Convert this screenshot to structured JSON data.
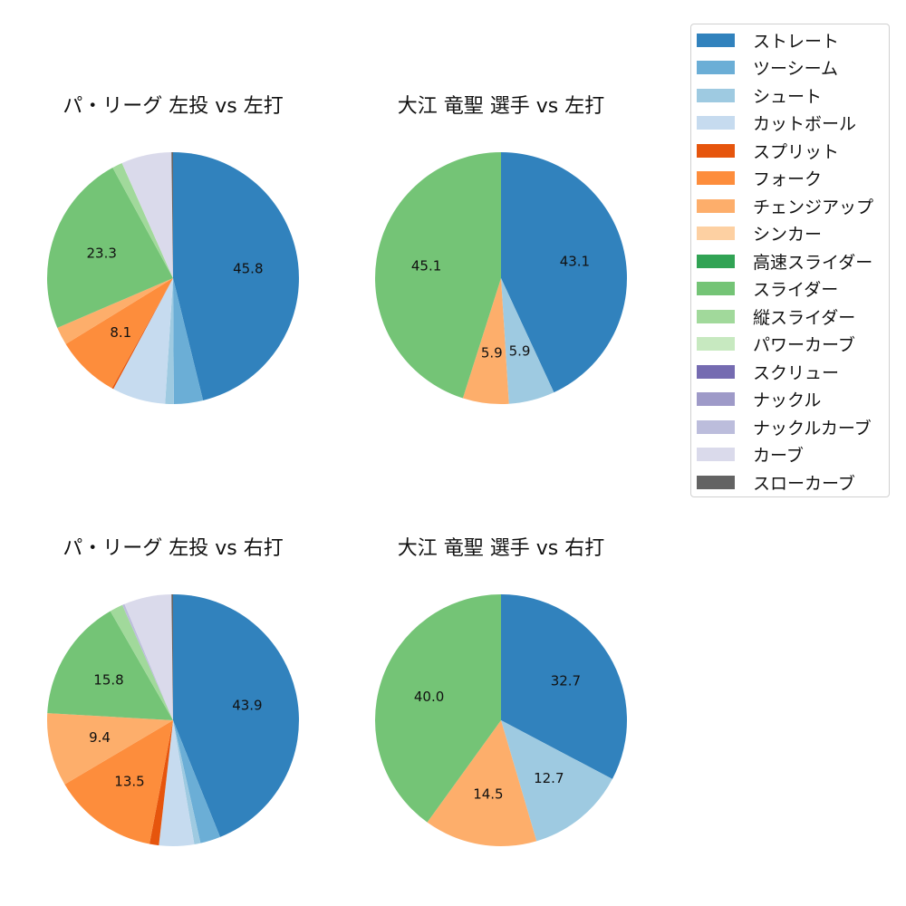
{
  "colors": {
    "ストレート": "#3182bd",
    "ツーシーム": "#6baed6",
    "シュート": "#9ecae1",
    "カットボール": "#c6dbef",
    "スプリット": "#e6550d",
    "フォーク": "#fd8d3c",
    "チェンジアップ": "#fdae6b",
    "シンカー": "#fdd0a2",
    "高速スライダー": "#31a354",
    "スライダー": "#74c476",
    "縦スライダー": "#a1d99b",
    "パワーカーブ": "#c7e9c0",
    "スクリュー": "#756bb1",
    "ナックル": "#9e9ac8",
    "ナックルカーブ": "#bcbddc",
    "カーブ": "#dadaeb",
    "スローカーブ": "#636363"
  },
  "legend": {
    "items": [
      "ストレート",
      "ツーシーム",
      "シュート",
      "カットボール",
      "スプリット",
      "フォーク",
      "チェンジアップ",
      "シンカー",
      "高速スライダー",
      "スライダー",
      "縦スライダー",
      "パワーカーブ",
      "スクリュー",
      "ナックル",
      "ナックルカーブ",
      "カーブ",
      "スローカーブ"
    ]
  },
  "chart_data": [
    {
      "type": "pie",
      "title": "パ・リーグ 左投 vs 左打",
      "slices": [
        {
          "label": "ストレート",
          "value": 45.8,
          "shown": "45.8"
        },
        {
          "label": "ツーシーム",
          "value": 3.7
        },
        {
          "label": "シュート",
          "value": 1.1
        },
        {
          "label": "カットボール",
          "value": 6.8
        },
        {
          "label": "スプリット",
          "value": 0.2
        },
        {
          "label": "フォーク",
          "value": 8.1,
          "shown": "8.1"
        },
        {
          "label": "チェンジアップ",
          "value": 2.3
        },
        {
          "label": "スライダー",
          "value": 23.3,
          "shown": "23.3"
        },
        {
          "label": "縦スライダー",
          "value": 1.3
        },
        {
          "label": "カーブ",
          "value": 6.4
        },
        {
          "label": "スローカーブ",
          "value": 0.2
        }
      ]
    },
    {
      "type": "pie",
      "title": "大江 竜聖 選手 vs 左打",
      "slices": [
        {
          "label": "ストレート",
          "value": 43.1,
          "shown": "43.1"
        },
        {
          "label": "シュート",
          "value": 5.9,
          "shown": "5.9"
        },
        {
          "label": "チェンジアップ",
          "value": 5.9,
          "shown": "5.9"
        },
        {
          "label": "スライダー",
          "value": 45.1,
          "shown": "45.1"
        }
      ]
    },
    {
      "type": "pie",
      "title": "パ・リーグ 左投 vs 右打",
      "slices": [
        {
          "label": "ストレート",
          "value": 43.9,
          "shown": "43.9"
        },
        {
          "label": "ツーシーム",
          "value": 2.6
        },
        {
          "label": "シュート",
          "value": 0.8
        },
        {
          "label": "カットボール",
          "value": 4.5
        },
        {
          "label": "スプリット",
          "value": 1.2
        },
        {
          "label": "フォーク",
          "value": 13.5,
          "shown": "13.5"
        },
        {
          "label": "チェンジアップ",
          "value": 9.4,
          "shown": "9.4"
        },
        {
          "label": "スライダー",
          "value": 15.8,
          "shown": "15.8"
        },
        {
          "label": "縦スライダー",
          "value": 1.7
        },
        {
          "label": "ナックルカーブ",
          "value": 0.3
        },
        {
          "label": "カーブ",
          "value": 6.1
        },
        {
          "label": "スローカーブ",
          "value": 0.2
        }
      ]
    },
    {
      "type": "pie",
      "title": "大江 竜聖 選手 vs 右打",
      "slices": [
        {
          "label": "ストレート",
          "value": 32.7,
          "shown": "32.7"
        },
        {
          "label": "シュート",
          "value": 12.7,
          "shown": "12.7"
        },
        {
          "label": "チェンジアップ",
          "value": 14.5,
          "shown": "14.5"
        },
        {
          "label": "スライダー",
          "value": 40.0,
          "shown": "40.0"
        }
      ]
    }
  ]
}
